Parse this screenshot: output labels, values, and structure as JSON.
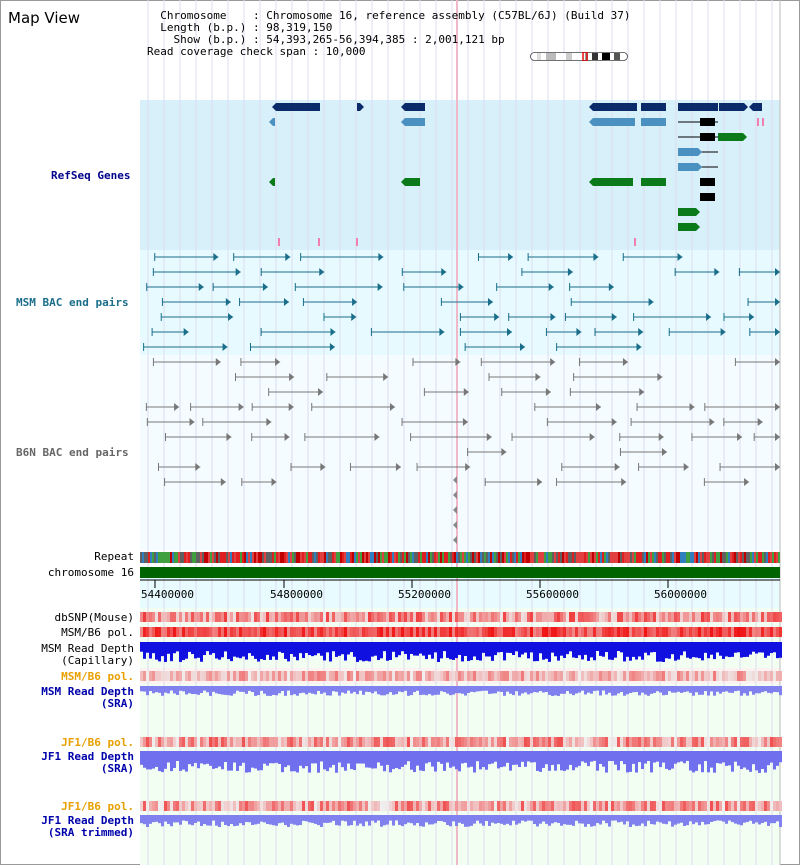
{
  "app": {
    "title": "Map View"
  },
  "info": {
    "chromosome_line": "  Chromosome    : Chromosome 16, reference assembly (C57BL/6J) (Build 37)",
    "length_line": "  Length (b.p.) : 98,319,150",
    "show_line": "    Show (b.p.) : 54,393,265-56,394,385 : 2,001,121 bp",
    "coverage_line": "Read coverage check span : 10,000"
  },
  "tracks": {
    "refseq": {
      "label": "RefSeq Genes",
      "color": "#00008b",
      "bg": "#d8f0fa"
    },
    "msm_bac": {
      "label": "MSM BAC end pairs",
      "color": "#1a6e8a",
      "bg": "#e6faff"
    },
    "b6n_bac": {
      "label": "B6N BAC end pairs",
      "color": "#666666"
    },
    "repeat": {
      "label": "Repeat"
    },
    "chromosome": {
      "label": "chromosome 16",
      "color": "#006400"
    },
    "ruler": {
      "ticks": [
        "54400000",
        "54800000",
        "55200000",
        "55600000",
        "56000000"
      ]
    },
    "dbsnp": {
      "label": "dbSNP(Mouse)"
    },
    "msm_b6_pol_1": {
      "label": "MSM/B6 pol."
    },
    "msm_depth_cap": {
      "label_line1": "MSM Read Depth",
      "label_line2": "(Capillary)"
    },
    "msm_b6_pol_2": {
      "label": "MSM/B6 pol.",
      "color": "#e8a000"
    },
    "msm_depth_sra": {
      "label_line1": "MSM Read Depth",
      "label_line2": "(SRA)",
      "color": "#0000aa"
    },
    "jf1_b6_pol_1": {
      "label": "JF1/B6 pol.",
      "color": "#e8a000"
    },
    "jf1_depth_sra": {
      "label_line1": "JF1 Read Depth",
      "label_line2": "(SRA)",
      "color": "#0000aa"
    },
    "jf1_b6_pol_2": {
      "label": "JF1/B6 pol.",
      "color": "#e8a000"
    },
    "jf1_depth_trim": {
      "label_line1": "JF1 Read Depth",
      "label_line2": "(SRA trimmed)",
      "color": "#0000aa"
    }
  }
}
